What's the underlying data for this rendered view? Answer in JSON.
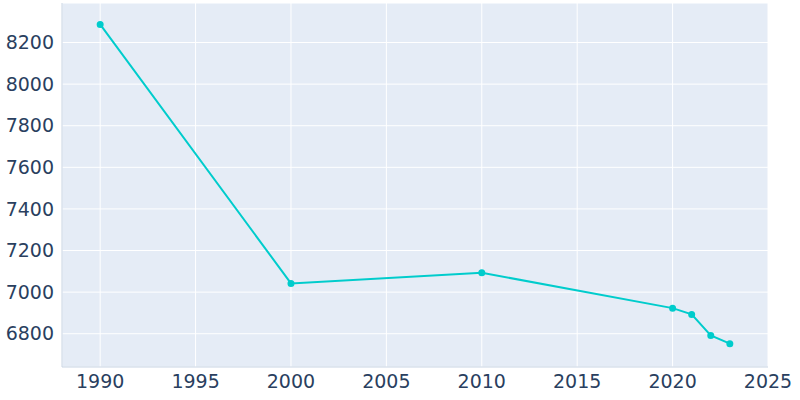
{
  "chart_data": {
    "type": "line",
    "x": [
      1990,
      2000,
      2010,
      2020,
      2021,
      2022,
      2023
    ],
    "values": [
      8287,
      7042,
      7093,
      6923,
      6893,
      6792,
      6752
    ],
    "color": "#00cccc",
    "xlim": [
      1988,
      2025
    ],
    "xticks": [
      1990,
      1995,
      2000,
      2005,
      2010,
      2015,
      2020,
      2025
    ],
    "ylim": [
      6640,
      8390
    ],
    "yticks": [
      6800,
      7000,
      7200,
      7400,
      7600,
      7800,
      8000,
      8200
    ],
    "grid": true,
    "marker": "circle"
  }
}
